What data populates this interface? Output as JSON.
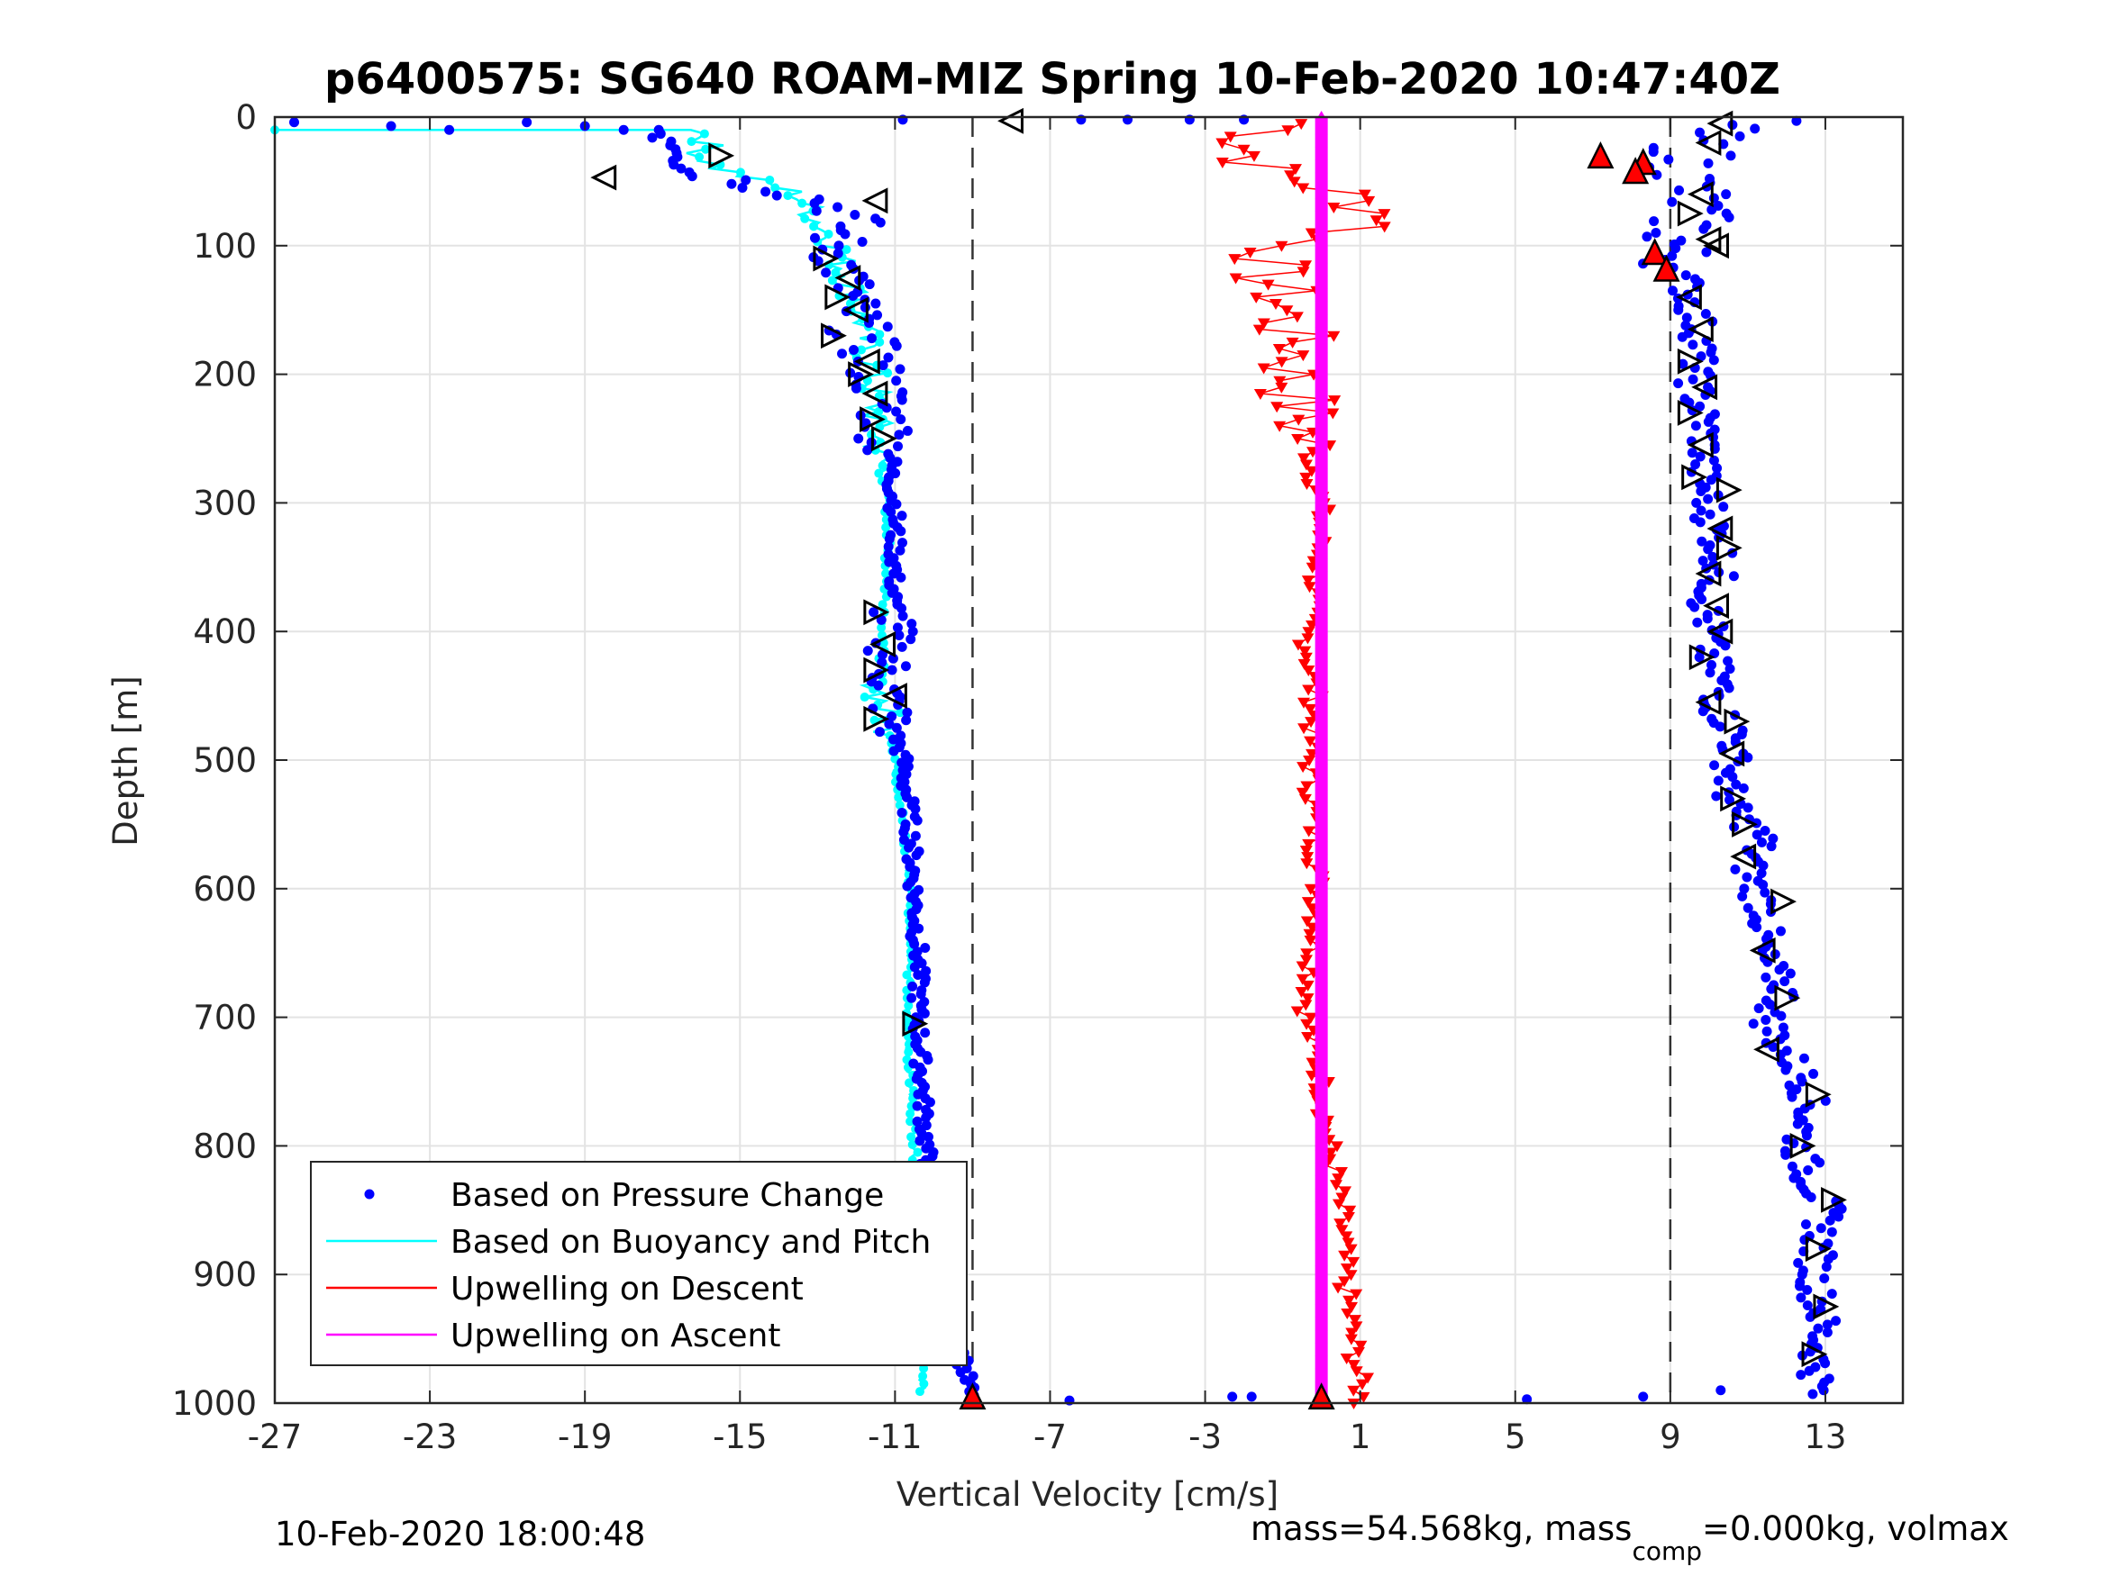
{
  "chart_data": {
    "type": "scatter",
    "title": "p6400575: SG640 ROAM-MIZ Spring 10-Feb-2020 10:47:40Z",
    "xlabel": "Vertical Velocity [cm/s]",
    "ylabel": "Depth [m]",
    "xlim": [
      -27,
      15
    ],
    "ylim": [
      0,
      1000
    ],
    "y_reversed": true,
    "grid": true,
    "x_ticks": [
      -27,
      -23,
      -19,
      -15,
      -11,
      -7,
      -3,
      1,
      5,
      9,
      13
    ],
    "y_ticks": [
      0,
      100,
      200,
      300,
      400,
      500,
      600,
      700,
      800,
      900,
      1000
    ],
    "reference_lines_x": [
      -9,
      9
    ],
    "legend_position": "bottom-left",
    "series": [
      {
        "name": "Based on Pressure Change",
        "color": "#0000ff",
        "style": "dots",
        "descent": {
          "depth": [
            5,
            10,
            20,
            30,
            40,
            50,
            60,
            70,
            80,
            90,
            100,
            120,
            140,
            160,
            180,
            200,
            220,
            240,
            260,
            280,
            300,
            350,
            400,
            450,
            480,
            500,
            550,
            600,
            650,
            700,
            750,
            800,
            850,
            880,
            900,
            930,
            960,
            990
          ],
          "velocity": [
            -19,
            -17,
            -16.5,
            -16,
            -16.5,
            -15,
            -13.5,
            -12.5,
            -12,
            -12.5,
            -12.5,
            -12.3,
            -12.2,
            -12,
            -11.7,
            -11.5,
            -11.3,
            -11.2,
            -11.1,
            -11.1,
            -11,
            -11,
            -11.1,
            -11.2,
            -11,
            -10.8,
            -10.6,
            -10.5,
            -10.4,
            -10.4,
            -10.3,
            -10.2,
            -10.1,
            -10,
            -9.8,
            -9.5,
            -9.3,
            -9.1
          ]
        },
        "ascent": {
          "depth": [
            990,
            960,
            930,
            900,
            880,
            850,
            820,
            800,
            770,
            750,
            720,
            700,
            680,
            650,
            620,
            600,
            580,
            560,
            540,
            520,
            500,
            480,
            460,
            440,
            420,
            400,
            380,
            360,
            340,
            320,
            300,
            280,
            260,
            240,
            220,
            200,
            180,
            160,
            140,
            120,
            100,
            80,
            60,
            40,
            30,
            20,
            10,
            5
          ],
          "velocity": [
            12.8,
            12.8,
            12.9,
            12.7,
            12.8,
            13,
            12.5,
            12.3,
            12.6,
            12.5,
            11.8,
            11.5,
            12,
            11.3,
            11.5,
            11.2,
            11,
            11.4,
            10.6,
            10.5,
            10.6,
            10.7,
            10.2,
            10.3,
            10,
            10,
            9.9,
            10.2,
            10.3,
            10.1,
            10,
            9.8,
            9.9,
            9.9,
            9.7,
            9.6,
            9.8,
            9.7,
            9.5,
            9.3,
            9.0,
            9.5,
            9.6,
            9.3,
            9.6,
            9.6,
            10,
            10.5
          ]
        },
        "surface_outliers": [
          {
            "depth": 2,
            "velocity": -10.8
          },
          {
            "depth": 2,
            "velocity": -6.2
          },
          {
            "depth": 2,
            "velocity": -5.0
          },
          {
            "depth": 2,
            "velocity": -3.4
          },
          {
            "depth": 2,
            "velocity": -2.0
          },
          {
            "depth": 998,
            "velocity": -6.5
          },
          {
            "depth": 995,
            "velocity": -2.3
          },
          {
            "depth": 995,
            "velocity": -1.8
          },
          {
            "depth": 997,
            "velocity": 5.3
          },
          {
            "depth": 995,
            "velocity": 8.3
          },
          {
            "depth": 990,
            "velocity": 10.3
          }
        ]
      },
      {
        "name": "Based on Buoyancy and Pitch",
        "color": "#00ffff",
        "style": "line",
        "descent": {
          "depth": [
            10,
            20,
            30,
            40,
            50,
            60,
            80,
            100,
            120,
            140,
            160,
            180,
            200,
            220,
            240,
            260,
            280,
            300,
            350,
            400,
            450,
            480,
            500,
            550,
            600,
            650,
            700,
            750,
            800,
            850,
            900,
            950,
            990
          ],
          "velocity": [
            -16,
            -15.8,
            -16,
            -15.5,
            -14.5,
            -13.5,
            -13,
            -12.5,
            -12.3,
            -12,
            -11.8,
            -11.8,
            -11.6,
            -11.5,
            -11.5,
            -11.4,
            -11.3,
            -11.2,
            -11.2,
            -11.3,
            -11.4,
            -11.1,
            -11,
            -10.8,
            -10.6,
            -10.6,
            -10.7,
            -10.6,
            -10.5,
            -10.4,
            -10.3,
            -10.3,
            -10.3
          ]
        },
        "ascent": {
          "depth": [],
          "velocity": []
        }
      },
      {
        "name": "Upwelling on Descent",
        "color": "#ff0000",
        "style": "line-with-down-triangles",
        "depth": [
          5,
          20,
          40,
          60,
          80,
          100,
          120,
          140,
          160,
          180,
          200,
          220,
          240,
          260,
          280,
          300,
          350,
          400,
          450,
          500,
          550,
          600,
          650,
          700,
          750,
          800,
          850,
          900,
          950,
          990
        ],
        "velocity": [
          -0.5,
          -2.0,
          -1.5,
          0.5,
          2.0,
          -1.0,
          -1.5,
          -1.0,
          -1.0,
          -0.5,
          -0.8,
          -0.6,
          -0.5,
          -0.3,
          -0.2,
          0.0,
          -0.1,
          -0.4,
          -0.2,
          -0.3,
          -0.2,
          -0.1,
          -0.2,
          -0.4,
          0.0,
          0.2,
          0.5,
          0.6,
          0.8,
          1.0
        ]
      },
      {
        "name": "Upwelling on Ascent",
        "color": "#ff00ff",
        "style": "line-with-up-triangles",
        "depth": [
          0,
          100,
          200,
          300,
          400,
          500,
          600,
          700,
          800,
          900,
          1000
        ],
        "velocity": [
          0,
          0,
          0,
          0,
          0,
          0,
          0,
          0,
          0,
          0,
          0
        ]
      }
    ],
    "footer_left": "10-Feb-2020 18:00:48",
    "footer_right_parts": [
      "mass=54.568kg, mass",
      "comp",
      "=0.000kg, volmax"
    ]
  }
}
